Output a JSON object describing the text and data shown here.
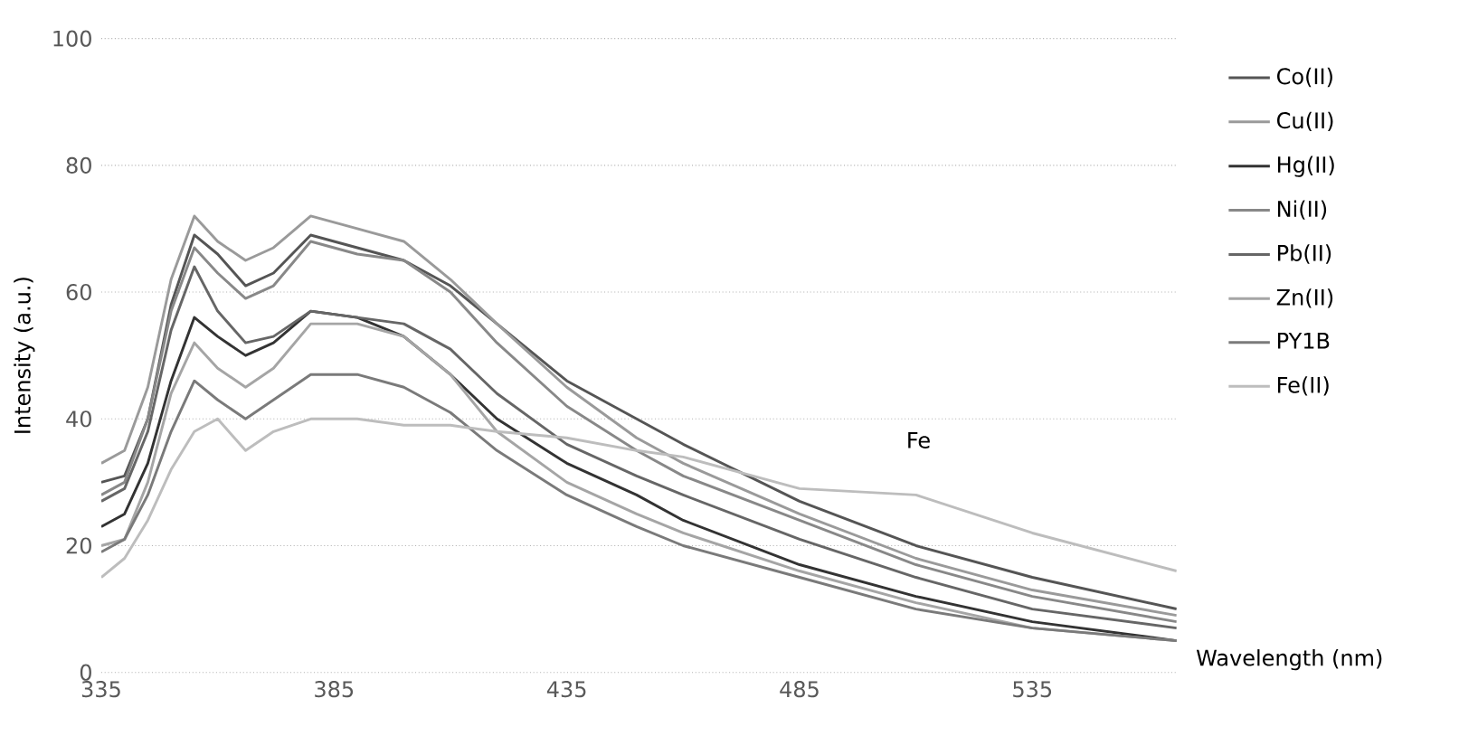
{
  "chart_data": {
    "type": "line",
    "xlabel": "Wavelength (nm)",
    "ylabel": "Intensity    (a.u.)",
    "xlim": [
      335,
      566
    ],
    "xticks": [
      335,
      385,
      435,
      485,
      535
    ],
    "ylim": [
      0,
      100
    ],
    "yticks": [
      0,
      20,
      40,
      60,
      80,
      100
    ],
    "grid": "y",
    "legend": "right",
    "marker": "none",
    "line_style": "solid",
    "x": [
      335,
      340,
      345,
      350,
      355,
      360,
      366,
      372,
      380,
      390,
      400,
      410,
      420,
      435,
      450,
      460,
      485,
      510,
      535,
      566
    ],
    "series": [
      {
        "name": "Co(II)",
        "color": "#555555",
        "values": [
          30,
          31,
          40,
          58,
          69,
          66,
          61,
          63,
          69,
          67,
          65,
          61,
          55,
          46,
          40,
          36,
          27,
          20,
          15,
          10
        ]
      },
      {
        "name": "Cu(II)",
        "color": "#9a9a9a",
        "values": [
          33,
          35,
          45,
          62,
          72,
          68,
          65,
          67,
          72,
          70,
          68,
          62,
          55,
          45,
          37,
          33,
          25,
          18,
          13,
          9
        ]
      },
      {
        "name": "Hg(II)",
        "color": "#333333",
        "values": [
          23,
          25,
          33,
          46,
          56,
          53,
          50,
          52,
          57,
          56,
          53,
          47,
          40,
          33,
          28,
          24,
          17,
          12,
          8,
          5
        ]
      },
      {
        "name": "Ni(II)",
        "color": "#888888",
        "values": [
          28,
          30,
          40,
          57,
          67,
          63,
          59,
          61,
          68,
          66,
          65,
          60,
          52,
          42,
          35,
          31,
          24,
          17,
          12,
          8
        ]
      },
      {
        "name": "Pb(II)",
        "color": "#666666",
        "values": [
          27,
          29,
          38,
          54,
          64,
          57,
          52,
          53,
          57,
          56,
          55,
          51,
          44,
          36,
          31,
          28,
          21,
          15,
          10,
          7
        ]
      },
      {
        "name": "Zn(II)",
        "color": "#a5a5a5",
        "values": [
          20,
          21,
          30,
          44,
          52,
          48,
          45,
          48,
          55,
          55,
          53,
          47,
          38,
          30,
          25,
          22,
          16,
          11,
          7,
          5
        ]
      },
      {
        "name": "PY1B",
        "color": "#7a7a7a",
        "values": [
          19,
          21,
          28,
          38,
          46,
          43,
          40,
          43,
          47,
          47,
          45,
          41,
          35,
          28,
          23,
          20,
          15,
          10,
          7,
          5
        ]
      },
      {
        "name": "Fe(II)",
        "color": "#bdbdbd",
        "values": [
          15,
          18,
          24,
          32,
          38,
          40,
          35,
          38,
          40,
          40,
          39,
          39,
          38,
          37,
          35,
          34,
          29,
          28,
          22,
          16
        ]
      }
    ],
    "annotations": [
      "Fe"
    ]
  }
}
